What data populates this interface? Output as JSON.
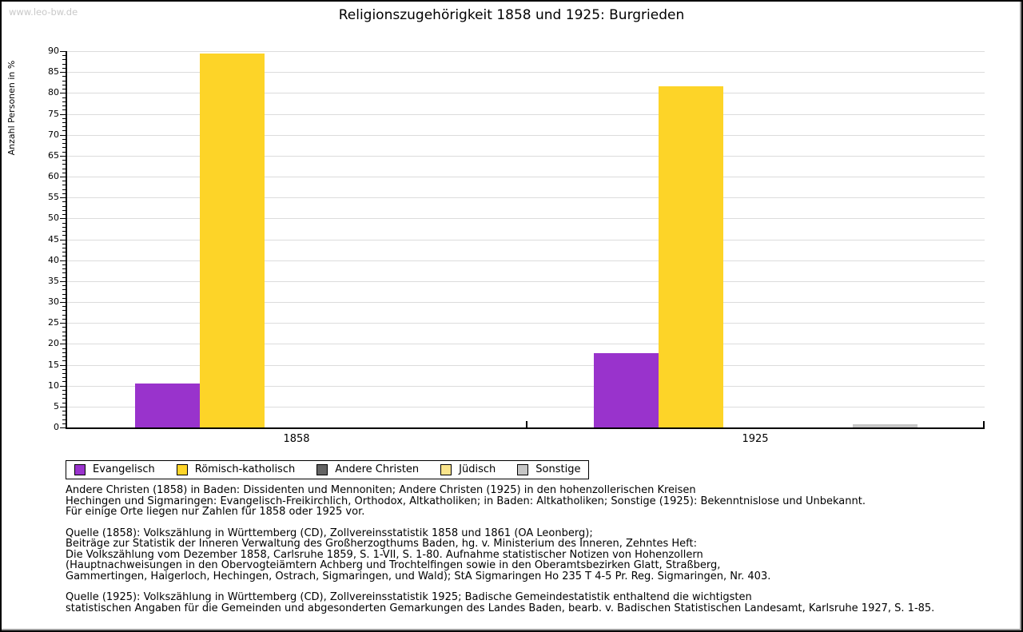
{
  "watermark": "www.leo-bw.de",
  "title": "Religionszugehörigkeit 1858 und 1925: Burgrieden",
  "chart_data": {
    "type": "bar",
    "title": "Religionszugehörigkeit 1858 und 1925: Burgrieden",
    "xlabel": "",
    "ylabel": "Anzahl Personen in %",
    "ylim": [
      0,
      90
    ],
    "ytick_step": 5,
    "yminor_step": 1,
    "grid": true,
    "legend_position": "bottom-left",
    "categories": [
      "1858",
      "1925"
    ],
    "series": [
      {
        "name": "Evangelisch",
        "color": "#9933cc",
        "values": [
          10.6,
          17.7
        ]
      },
      {
        "name": "Römisch-katholisch",
        "color": "#fdd428",
        "values": [
          89.4,
          81.6
        ]
      },
      {
        "name": "Andere Christen",
        "color": "#636363",
        "values": [
          0,
          0
        ]
      },
      {
        "name": "Jüdisch",
        "color": "#fae48b",
        "values": [
          0,
          0
        ]
      },
      {
        "name": "Sonstige",
        "color": "#c6c6c6",
        "values": [
          0,
          0.8
        ]
      }
    ]
  },
  "notes": [
    "Andere Christen (1858) in Baden: Dissidenten und Mennoniten; Andere Christen (1925) in den hohenzollerischen Kreisen\nHechingen und Sigmaringen: Evangelisch-Freikirchlich, Orthodox, Altkatholiken; in Baden: Altkatholiken; Sonstige (1925): Bekenntnislose und Unbekannt.\nFür einige Orte liegen nur Zahlen für 1858 oder 1925 vor.",
    "Quelle (1858): Volkszählung in Württemberg (CD), Zollvereinsstatistik 1858 und 1861 (OA Leonberg);\nBeiträge zur Statistik der Inneren Verwaltung des Großherzogthums Baden, hg. v. Ministerium des Inneren, Zehntes Heft:\nDie Volkszählung vom Dezember 1858, Carlsruhe 1859, S. 1-VII, S. 1-80. Aufnahme statistischer Notizen von Hohenzollern\n(Hauptnachweisungen in den Obervogteiämtern Achberg und Trochtelfingen sowie in den Oberamtsbezirken Glatt, Straßberg,\nGammertingen, Haigerloch, Hechingen, Ostrach, Sigmaringen, und Wald); StA Sigmaringen Ho 235 T 4-5 Pr. Reg. Sigmaringen, Nr. 403.",
    "Quelle (1925): Volkszählung in Württemberg (CD), Zollvereinsstatistik 1925; Badische Gemeindestatistik enthaltend die wichtigsten\nstatistischen Angaben für die Gemeinden und abgesonderten Gemarkungen des Landes Baden, bearb. v. Badischen Statistischen Landesamt, Karlsruhe 1927, S. 1-85."
  ]
}
